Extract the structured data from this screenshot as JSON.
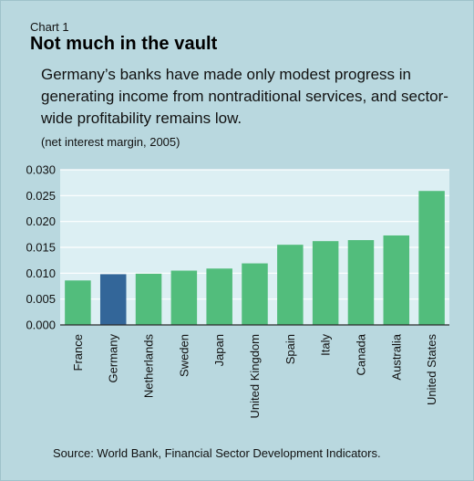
{
  "header": {
    "chart_number": "Chart 1",
    "title": "Not much in the vault",
    "subtitle": "Germany’s banks have made only modest progress in generating income from nontraditional services, and sector-wide profitability remains low.",
    "note": "(net interest margin, 2005)"
  },
  "footer": {
    "source": "Source: World Bank, Financial Sector Development Indicators."
  },
  "colors": {
    "background": "#b9d8df",
    "plot_area": "#dceff3",
    "bar": "#52bd7c",
    "highlight_bar": "#336699",
    "gridline": "#ffffff"
  },
  "chart_data": {
    "type": "bar",
    "categories": [
      "France",
      "Germany",
      "Netherlands",
      "Sweden",
      "Japan",
      "United Kingdom",
      "Spain",
      "Italy",
      "Canada",
      "Australia",
      "United States"
    ],
    "values": [
      0.0086,
      0.0098,
      0.0099,
      0.0105,
      0.0109,
      0.0119,
      0.0155,
      0.0162,
      0.0164,
      0.0173,
      0.0259
    ],
    "highlight": "Germany",
    "ylim": [
      0,
      0.03
    ],
    "yticks": [
      "0.000",
      "0.005",
      "0.010",
      "0.015",
      "0.020",
      "0.025",
      "0.030"
    ],
    "grid": true
  }
}
